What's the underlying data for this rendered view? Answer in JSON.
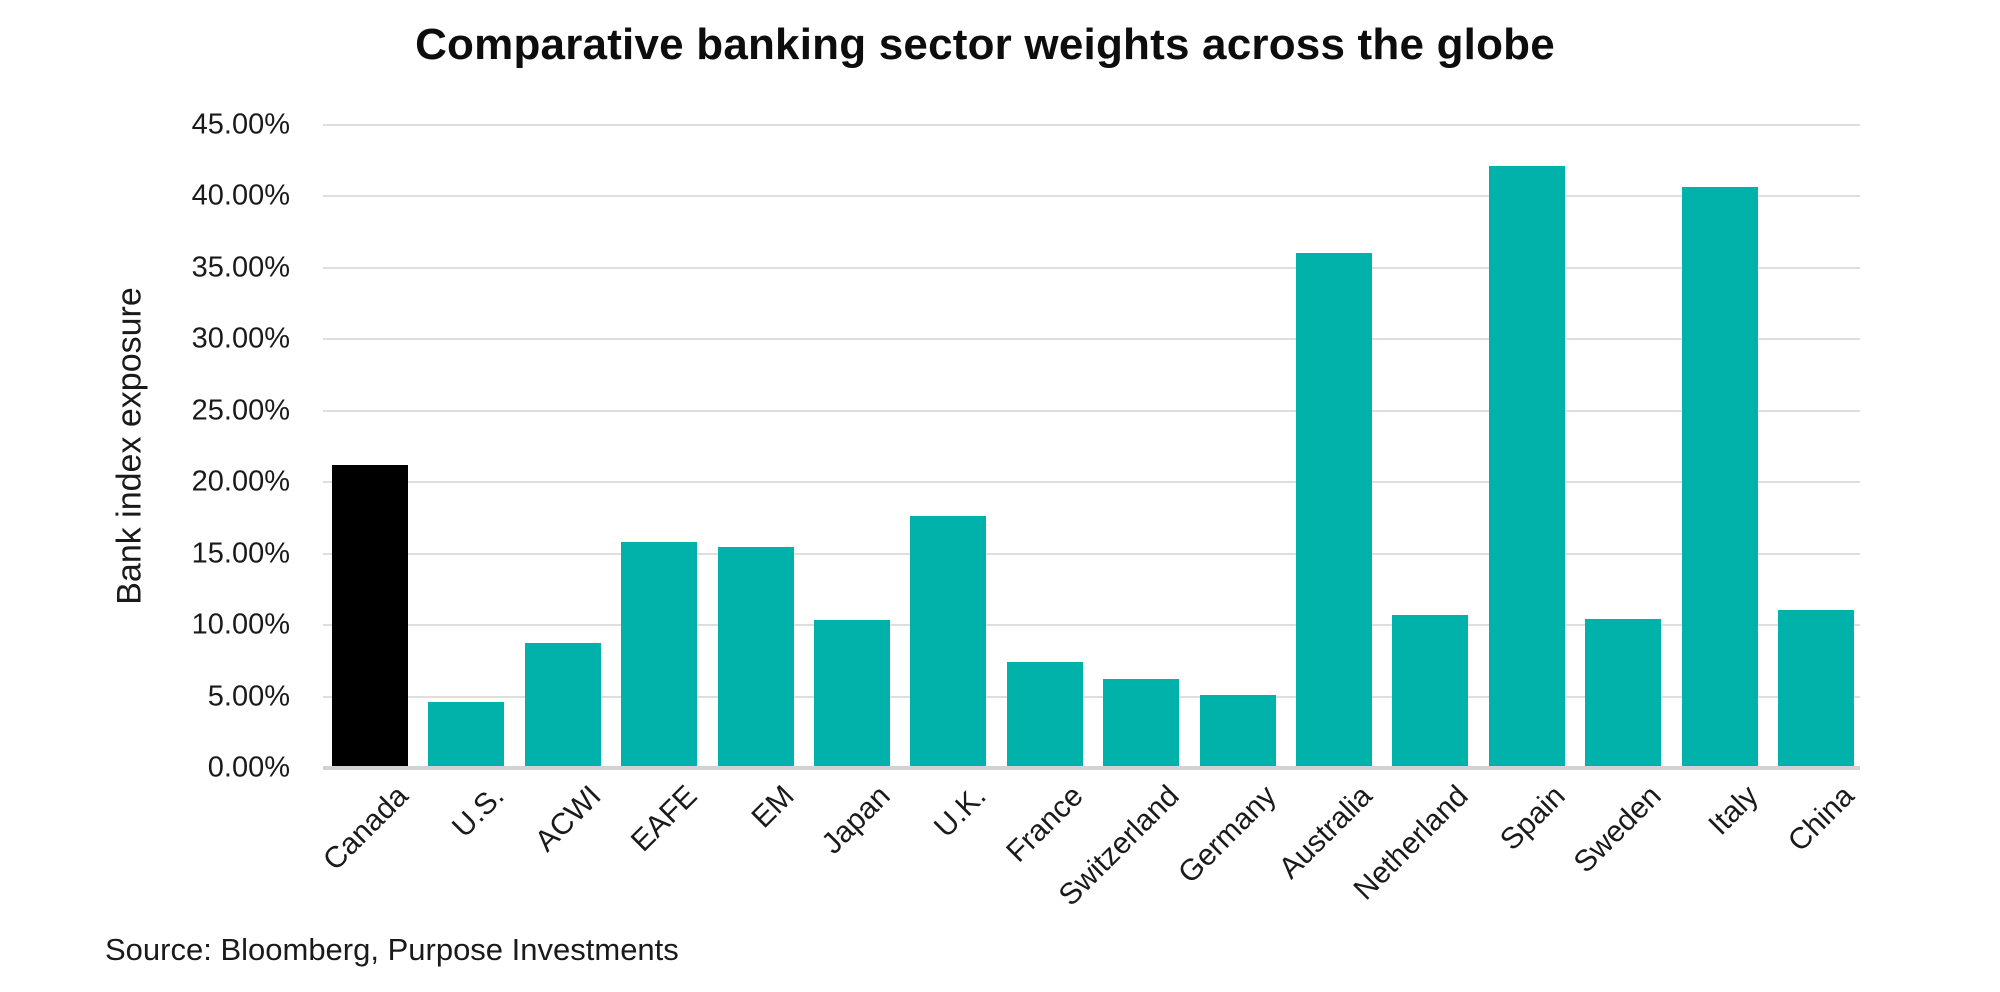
{
  "source_note": "Source: Bloomberg, Purpose Investments",
  "chart_data": {
    "type": "bar",
    "title": "Comparative banking sector weights across the globe",
    "categories": [
      "Canada",
      "U.S.",
      "ACWI",
      "EAFE",
      "EM",
      "Japan",
      "U.K.",
      "France",
      "Switzerland",
      "Germany",
      "Australia",
      "Netherland",
      "Spain",
      "Sweden",
      "Italy",
      "China"
    ],
    "values": [
      21.1,
      4.5,
      8.6,
      15.7,
      15.3,
      10.2,
      17.5,
      7.3,
      6.1,
      5.0,
      35.9,
      10.6,
      42.0,
      10.3,
      40.5,
      10.9
    ],
    "unit": "percent",
    "xlabel": "",
    "ylabel": "Bank index exposure",
    "ylim": [
      0,
      45
    ],
    "ytick_step": 5,
    "ytick_labels": [
      "45.00%",
      "40.00%",
      "35.00%",
      "30.00%",
      "25.00%",
      "20.00%",
      "15.00%",
      "10.00%",
      "5.00%",
      "0.00%"
    ],
    "grid": "horizontal",
    "legend": "none",
    "xtick_rotation_deg": 45,
    "bar_color": "#00B2A9",
    "highlight": {
      "category": "Canada",
      "color": "#000000"
    },
    "gridline_color": "#DEDEDE",
    "axis_line_color": "#D2D2D2",
    "text_color": "#1A1A1A",
    "background_color": "#FFFFFF"
  }
}
